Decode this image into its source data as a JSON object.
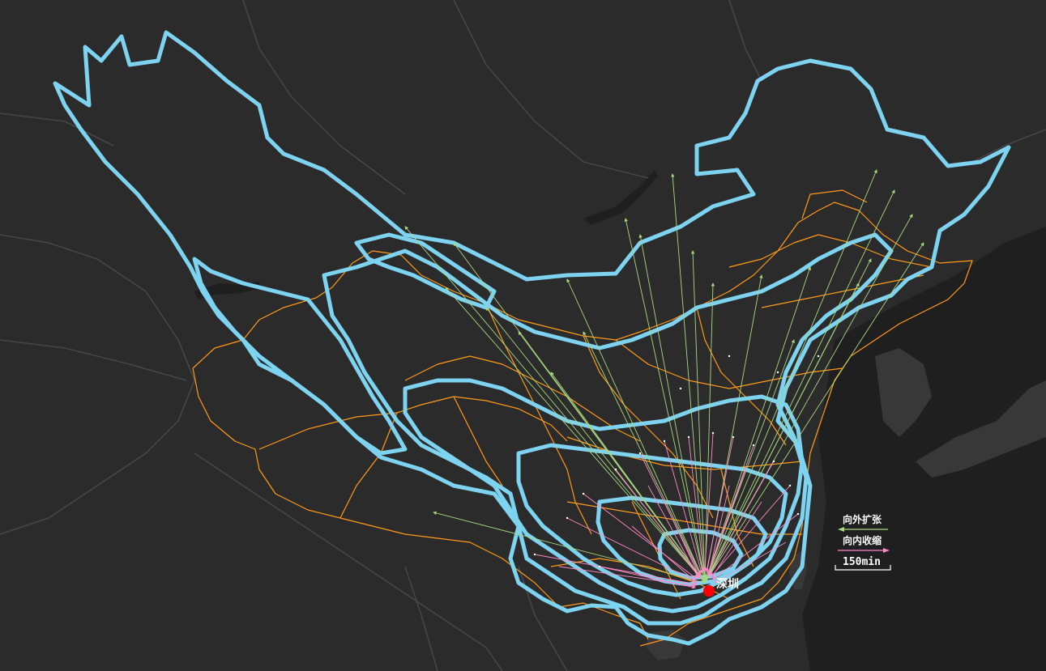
{
  "map": {
    "city_label": "深圳",
    "legend": {
      "outward_label": "向外扩张",
      "inward_label": "向内收缩",
      "scale_label": "150min"
    },
    "colors": {
      "background": "#2b2b2b",
      "land": "#383838",
      "sea": "#1f1f1f",
      "neighbor_border": "#474747",
      "province_border": "#ff9a1a",
      "isochrone": "#7dd3f0",
      "outward_arrow": "#a8d880",
      "inward_arrow": "#ff88c8",
      "city_marker": "#ff0000"
    },
    "icons": [
      "city-marker-icon",
      "outward-arrow-icon",
      "inward-arrow-icon",
      "scale-bar-icon"
    ]
  }
}
